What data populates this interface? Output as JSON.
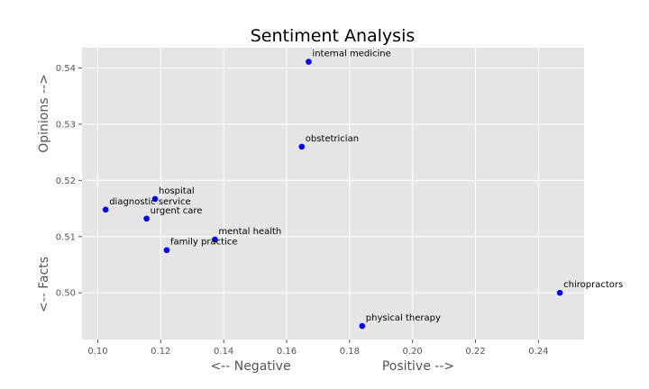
{
  "chart_data": {
    "type": "scatter",
    "title": "Sentiment Analysis",
    "xlabel_left": "<-- Negative",
    "xlabel_right": "Positive -->",
    "ylabel_top": "Opinions -->",
    "ylabel_bottom": "<-- Facts",
    "xlim": [
      0.095,
      0.2545
    ],
    "ylim": [
      0.4917,
      0.5436
    ],
    "xticks": [
      0.1,
      0.12,
      0.14,
      0.16,
      0.18,
      0.2,
      0.22,
      0.24
    ],
    "yticks": [
      0.5,
      0.51,
      0.52,
      0.53,
      0.54
    ],
    "xtick_labels": [
      "0.10",
      "0.12",
      "0.14",
      "0.16",
      "0.18",
      "0.20",
      "0.22",
      "0.24"
    ],
    "ytick_labels": [
      "0.50",
      "0.51",
      "0.52",
      "0.53",
      "0.54"
    ],
    "grid": true,
    "point_color": "#0000ff",
    "background_color": "#e5e5e5",
    "points": [
      {
        "label": "internal medicine",
        "x": 0.167,
        "y": 0.5411
      },
      {
        "label": "obstetrician",
        "x": 0.1648,
        "y": 0.526
      },
      {
        "label": "hospital",
        "x": 0.1182,
        "y": 0.5167
      },
      {
        "label": "diagnostic service",
        "x": 0.1025,
        "y": 0.5148
      },
      {
        "label": "urgent care",
        "x": 0.1155,
        "y": 0.5132
      },
      {
        "label": "mental health",
        "x": 0.1372,
        "y": 0.5095
      },
      {
        "label": "family practice",
        "x": 0.1219,
        "y": 0.5076
      },
      {
        "label": "chiropractors",
        "x": 0.2468,
        "y": 0.5
      },
      {
        "label": "physical therapy",
        "x": 0.184,
        "y": 0.4941
      }
    ]
  }
}
